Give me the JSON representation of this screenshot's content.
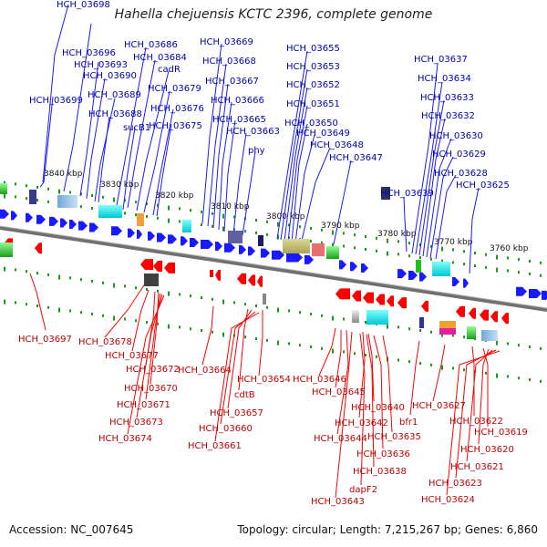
{
  "title": "Hahella chejuensis KCTC 2396, complete genome",
  "footer": {
    "accession": "Accession: NC_007645",
    "summary": "Topology: circular; Length: 7,215,267 bp; Genes: 6,860"
  },
  "colors": {
    "forward": "#1a1aff",
    "reverse": "#ff0000",
    "forward_label": "#0000b0",
    "reverse_label": "#c00000",
    "backbone": "#777777",
    "tick": "#1a9a1a"
  },
  "scale": {
    "ticks": [
      "3840 kbp",
      "3830 kbp",
      "3820 kbp",
      "3810 kbp",
      "3800 kbp",
      "3790 kbp",
      "3780 kbp",
      "3770 kbp",
      "3760 kbp"
    ]
  },
  "forward_labels": [
    "HCH_03698",
    "HCH_03696",
    "HCH_03693",
    "HCH_03690",
    "HCH_03699",
    "HCH_03689",
    "HCH_03688",
    "HCH_03686",
    "HCH_03684",
    "cadR",
    "HCH_03679",
    "sucB1",
    "HCH_03676",
    "HCH_03675",
    "HCH_03669",
    "HCH_03668",
    "HCH_03667",
    "HCH_03666",
    "HCH_03665",
    "HCH_03663",
    "phy",
    "HCH_03655",
    "HCH_03653",
    "HCH_03652",
    "HCH_03651",
    "HCH_03650",
    "HCH_03649",
    "HCH_03648",
    "HCH_03647",
    "HCH_03637",
    "HCH_03634",
    "HCH_03633",
    "HCH_03632",
    "HCH_03630",
    "HCH_03629",
    "HCH_03628",
    "HCH_03625",
    "HCH_03639"
  ],
  "reverse_labels": [
    "HCH_03697",
    "HCH_03678",
    "HCH_03677",
    "HCH_03672",
    "HCH_03670",
    "HCH_03671",
    "HCH_03673",
    "HCH_03674",
    "HCH_03664",
    "HCH_03654",
    "cdtB",
    "HCH_03657",
    "HCH_03660",
    "HCH_03661",
    "HCH_03646",
    "HCH_03645",
    "HCH_03640",
    "HCH_03642",
    "HCH_03644",
    "HCH_03635",
    "HCH_03636",
    "HCH_03638",
    "dapF2",
    "HCH_03643",
    "bfr1",
    "HCH_03627",
    "HCH_03622",
    "HCH_03619",
    "HCH_03620",
    "HCH_03621",
    "HCH_03623",
    "HCH_03624"
  ]
}
